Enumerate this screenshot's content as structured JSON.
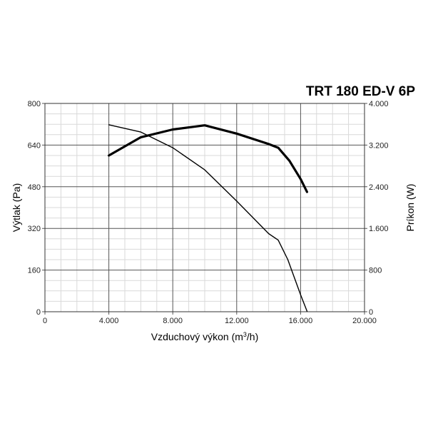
{
  "chart_data": {
    "type": "line",
    "title": "TRT 180 ED-V 6P",
    "xlabel_main": "Vzduchový výkon (m",
    "xlabel_sup": "3",
    "xlabel_end": "/h)",
    "ylabel_left": "Výtlak (Pa)",
    "ylabel_right": "Príkon (W)",
    "xlim": [
      0,
      20000
    ],
    "ylim_left": [
      0,
      800
    ],
    "ylim_right": [
      0,
      4000
    ],
    "x_ticks": [
      0,
      4000,
      8000,
      12000,
      16000,
      20000
    ],
    "x_tick_labels": [
      "0",
      "4.000",
      "8.000",
      "12.000",
      "16.000",
      "20.000"
    ],
    "y_left_ticks": [
      0,
      160,
      320,
      480,
      640,
      800
    ],
    "y_left_tick_labels": [
      "0",
      "160",
      "320",
      "480",
      "640",
      "800"
    ],
    "y_right_ticks": [
      0,
      800,
      1600,
      2400,
      3200,
      4000
    ],
    "y_right_tick_labels": [
      "0",
      "800",
      "1.600",
      "2.400",
      "3.200",
      "4.000"
    ],
    "series": [
      {
        "axis": "left",
        "line_width": "thin",
        "x": [
          4000,
          6000,
          8000,
          10000,
          12000,
          14000,
          14600,
          15200,
          16000,
          16400
        ],
        "y": [
          718,
          690,
          630,
          545,
          425,
          300,
          275,
          200,
          65,
          2
        ]
      },
      {
        "axis": "right",
        "line_width": "thick",
        "x": [
          4000,
          6000,
          8000,
          10000,
          12000,
          14000,
          14600,
          15300,
          16000,
          16400
        ],
        "y": [
          3000,
          3350,
          3500,
          3580,
          3420,
          3220,
          3150,
          2900,
          2550,
          2300
        ]
      }
    ],
    "grid": true
  }
}
